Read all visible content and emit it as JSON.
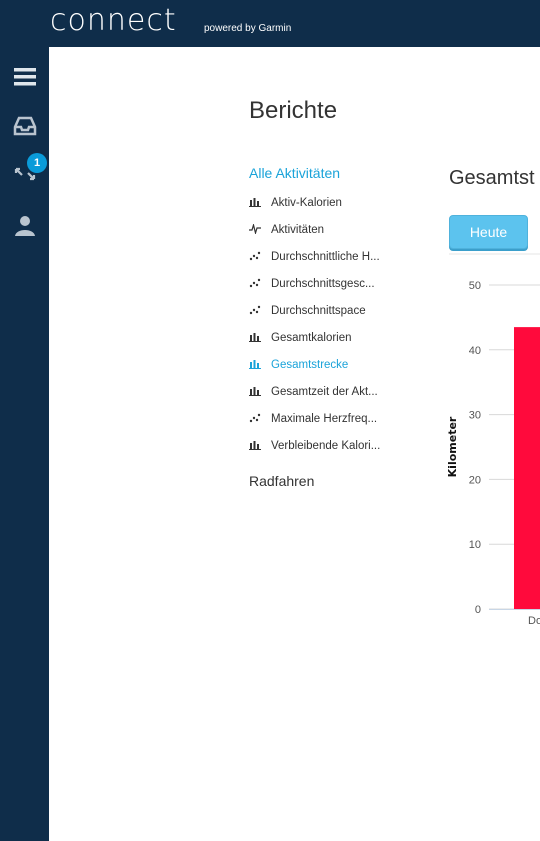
{
  "header": {
    "logo_text": "connect",
    "powered_by": "powered by Garmin"
  },
  "sidebar": {
    "icons": [
      "menu-icon",
      "inbox-icon",
      "connections-icon",
      "user-icon"
    ],
    "notification_count": "1"
  },
  "page": {
    "title": "Berichte"
  },
  "categories": {
    "active": "Alle Aktivitäten",
    "reports": [
      {
        "label": "Aktiv-Kalorien",
        "icon": "bar-chart-icon"
      },
      {
        "label": "Aktivitäten",
        "icon": "line-chart-icon"
      },
      {
        "label": "Durchschnittliche H...",
        "icon": "scatter-icon"
      },
      {
        "label": "Durchschnittsgesc...",
        "icon": "scatter-icon"
      },
      {
        "label": "Durchschnittspace",
        "icon": "scatter-icon"
      },
      {
        "label": "Gesamtkalorien",
        "icon": "bar-chart-icon"
      },
      {
        "label": "Gesamtstrecke",
        "icon": "bar-chart-icon",
        "active": true
      },
      {
        "label": "Gesamtzeit der Akt...",
        "icon": "bar-chart-icon"
      },
      {
        "label": "Maximale Herzfreq...",
        "icon": "scatter-icon"
      },
      {
        "label": "Verbleibende Kalori...",
        "icon": "bar-chart-icon"
      }
    ],
    "next_category": "Radfahren"
  },
  "chart_panel": {
    "title": "Gesamtst",
    "today_button": "Heute"
  },
  "colors": {
    "nav_bg": "#0f2d4a",
    "accent": "#1aa3d9",
    "bar": "#ff0a3c",
    "button": "#5cc3ee"
  },
  "chart_data": {
    "type": "bar",
    "ylabel": "Kilometer",
    "ylim": [
      0,
      50
    ],
    "yticks": [
      "0",
      "10",
      "20",
      "30",
      "40",
      "50"
    ],
    "categories": [
      "Do"
    ],
    "values": [
      43.5
    ],
    "grid": true
  }
}
